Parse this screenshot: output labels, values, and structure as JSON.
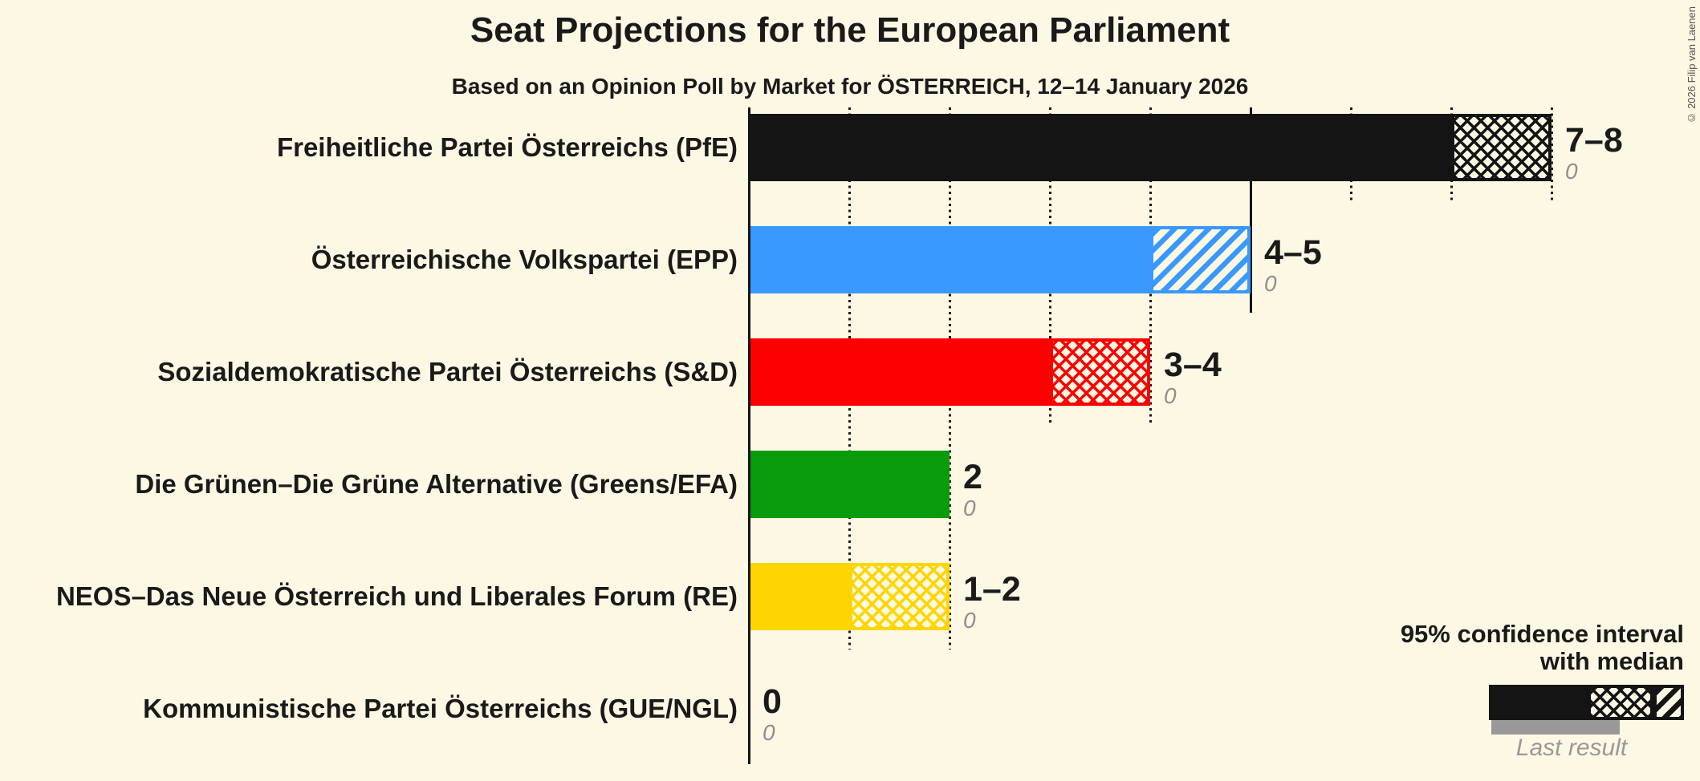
{
  "header": {
    "title": "Seat Projections for the European Parliament",
    "subtitle": "Based on an Opinion Poll by Market for ÖSTERREICH, 12–14 January 2026"
  },
  "copyright": "© 2026 Filip van Laenen",
  "legend": {
    "line1": "95% confidence interval",
    "line2": "with median",
    "last_result": "Last result"
  },
  "colors": {
    "background": "#FCF8E4",
    "text": "#1A1A1A",
    "muted_gray": "#8E8E8E",
    "last_result_bar": "#999999"
  },
  "chart_data": {
    "type": "bar",
    "orientation": "horizontal",
    "unit": "seats",
    "x_axis": {
      "min": 0,
      "max": 8,
      "tick_step": 1,
      "solid_line_value": 5,
      "gridlines": "dotted"
    },
    "parties": [
      {
        "label": "Freiheitliche Partei Österreichs (PfE)",
        "color": "#141414",
        "ci_low": 7,
        "median": 8,
        "ci_high": 8,
        "value_label": "7–8",
        "last_result": 0,
        "last_result_label": "0"
      },
      {
        "label": "Österreichische Volkspartei (EPP)",
        "color": "#3A99FF",
        "ci_low": 4,
        "median": 4,
        "ci_high": 5,
        "value_label": "4–5",
        "last_result": 0,
        "last_result_label": "0"
      },
      {
        "label": "Sozialdemokratische Partei Österreichs (S&D)",
        "color": "#FC0000",
        "ci_low": 3,
        "median": 4,
        "ci_high": 4,
        "value_label": "3–4",
        "last_result": 0,
        "last_result_label": "0"
      },
      {
        "label": "Die Grünen–Die Grüne Alternative (Greens/EFA)",
        "color": "#0A9B0A",
        "ci_low": 2,
        "median": 2,
        "ci_high": 2,
        "value_label": "2",
        "last_result": 0,
        "last_result_label": "0"
      },
      {
        "label": "NEOS–Das Neue Österreich und Liberales Forum (RE)",
        "color": "#FFD500",
        "ci_low": 1,
        "median": 2,
        "ci_high": 2,
        "value_label": "1–2",
        "last_result": 0,
        "last_result_label": "0"
      },
      {
        "label": "Kommunistische Partei Österreichs (GUE/NGL)",
        "ci_low": 0,
        "median": 0,
        "ci_high": 0,
        "value_label": "0",
        "last_result": 0,
        "last_result_label": "0"
      }
    ]
  }
}
